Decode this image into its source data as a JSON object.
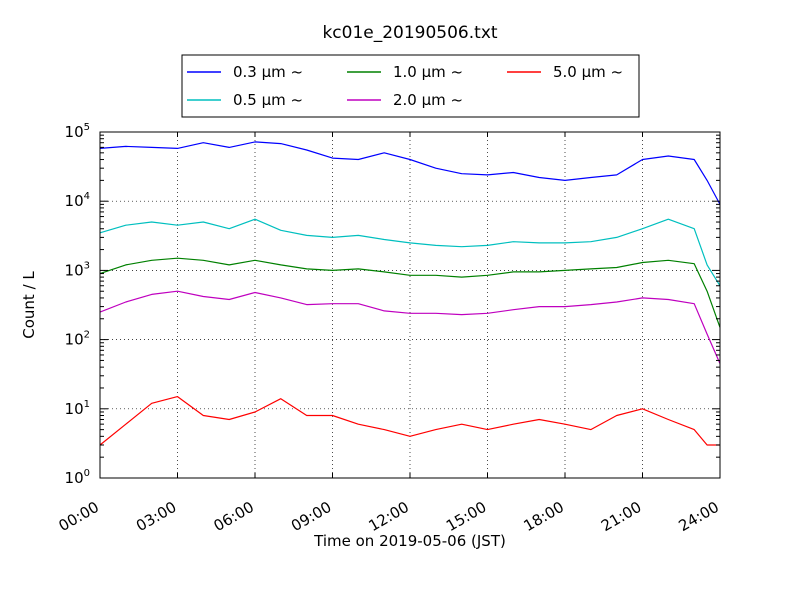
{
  "chart_data": {
    "type": "line",
    "title": "kc01e_20190506.txt",
    "xlabel": "Time on 2019-05-06 (JST)",
    "ylabel": "Count / L",
    "yscale": "log",
    "ylim": [
      1,
      100000
    ],
    "xlim_hours": [
      0,
      24
    ],
    "grid": true,
    "legend_position": "top-center, above plot",
    "x_ticks": [
      "00:00",
      "03:00",
      "06:00",
      "09:00",
      "12:00",
      "15:00",
      "18:00",
      "21:00",
      "24:00"
    ],
    "y_ticks": [
      {
        "base": "10",
        "exp": "0"
      },
      {
        "base": "10",
        "exp": "1"
      },
      {
        "base": "10",
        "exp": "2"
      },
      {
        "base": "10",
        "exp": "3"
      },
      {
        "base": "10",
        "exp": "4"
      },
      {
        "base": "10",
        "exp": "5"
      }
    ],
    "x_hours": [
      0,
      1,
      2,
      3,
      4,
      5,
      6,
      7,
      8,
      9,
      10,
      11,
      12,
      13,
      14,
      15,
      16,
      17,
      18,
      19,
      20,
      21,
      22,
      23,
      23.5,
      24
    ],
    "series": [
      {
        "name": "0.3 µm ~",
        "color": "#0000ff",
        "values": [
          58000,
          62000,
          60000,
          58000,
          70000,
          60000,
          72000,
          68000,
          55000,
          42000,
          40000,
          50000,
          40000,
          30000,
          25000,
          24000,
          26000,
          22000,
          20000,
          22000,
          24000,
          40000,
          45000,
          40000,
          20000,
          9000
        ]
      },
      {
        "name": "0.5 µm ~",
        "color": "#00bfbf",
        "values": [
          3500,
          4500,
          5000,
          4500,
          5000,
          4000,
          5500,
          3800,
          3200,
          3000,
          3200,
          2800,
          2500,
          2300,
          2200,
          2300,
          2600,
          2500,
          2500,
          2600,
          3000,
          4000,
          5500,
          4000,
          1200,
          600
        ]
      },
      {
        "name": "1.0 µm ~",
        "color": "#008000",
        "values": [
          900,
          1200,
          1400,
          1500,
          1400,
          1200,
          1400,
          1200,
          1050,
          1000,
          1050,
          950,
          850,
          850,
          800,
          850,
          950,
          950,
          1000,
          1050,
          1100,
          1300,
          1400,
          1250,
          500,
          150
        ]
      },
      {
        "name": "2.0 µm ~",
        "color": "#bf00bf",
        "values": [
          250,
          350,
          450,
          500,
          420,
          380,
          480,
          400,
          320,
          330,
          330,
          260,
          240,
          240,
          230,
          240,
          270,
          300,
          300,
          320,
          350,
          400,
          380,
          330,
          120,
          45
        ]
      },
      {
        "name": "5.0 µm ~",
        "color": "#ff0000",
        "values": [
          3,
          6,
          12,
          15,
          8,
          7,
          9,
          14,
          8,
          8,
          6,
          5,
          4,
          5,
          6,
          5,
          6,
          7,
          6,
          5,
          8,
          10,
          7,
          5,
          3,
          3
        ]
      }
    ]
  }
}
